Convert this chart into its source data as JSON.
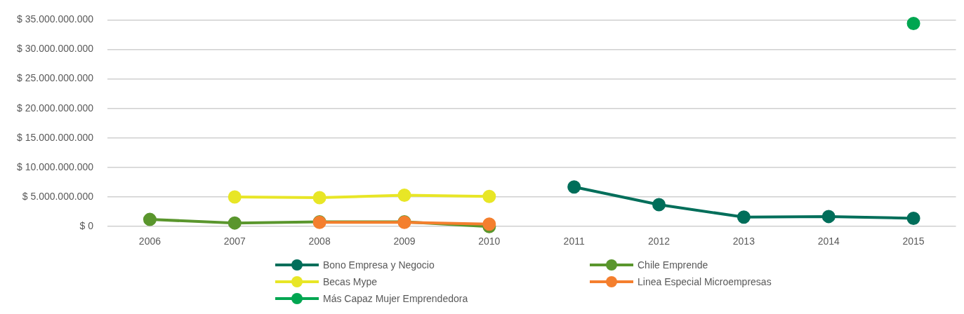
{
  "chart_data": {
    "type": "line",
    "categories": [
      "2006",
      "2007",
      "2008",
      "2009",
      "2010",
      "2011",
      "2012",
      "2013",
      "2014",
      "2015"
    ],
    "series": [
      {
        "name": "Bono Empresa y Negocio",
        "color": "#006e5a",
        "values": [
          null,
          null,
          null,
          null,
          null,
          6700000000,
          3700000000,
          1600000000,
          1700000000,
          1400000000
        ]
      },
      {
        "name": "Chile Emprende",
        "color": "#5a962d",
        "values": [
          1200000000,
          600000000,
          800000000,
          800000000,
          0,
          null,
          null,
          null,
          null,
          null
        ]
      },
      {
        "name": "Becas Mype",
        "color": "#e8e626",
        "values": [
          null,
          5000000000,
          4900000000,
          5300000000,
          5100000000,
          null,
          null,
          null,
          null,
          null
        ]
      },
      {
        "name": "Linea Especial Microempresas",
        "color": "#f47f2e",
        "values": [
          null,
          null,
          700000000,
          700000000,
          400000000,
          null,
          null,
          null,
          null,
          null
        ]
      },
      {
        "name": "Más Capaz Mujer Emprendedora",
        "color": "#00a651",
        "values": [
          null,
          null,
          null,
          null,
          null,
          null,
          null,
          null,
          null,
          34400000000
        ]
      }
    ],
    "ylim": [
      0,
      35000000000
    ],
    "yticks": [
      {
        "value": 0,
        "label": "$ 0"
      },
      {
        "value": 5000000000,
        "label": "$ 5.000.000.000"
      },
      {
        "value": 10000000000,
        "label": "$ 10.000.000.000"
      },
      {
        "value": 15000000000,
        "label": "$ 15.000.000.000"
      },
      {
        "value": 20000000000,
        "label": "$ 20.000.000.000"
      },
      {
        "value": 25000000000,
        "label": "$ 25.000.000.000"
      },
      {
        "value": 30000000000,
        "label": "$ 30.000.000.000"
      },
      {
        "value": 35000000000,
        "label": "$ 35.000.000.000"
      }
    ],
    "grid": "y",
    "legend": "bottom",
    "marker": "circle",
    "line_style": "solid"
  }
}
